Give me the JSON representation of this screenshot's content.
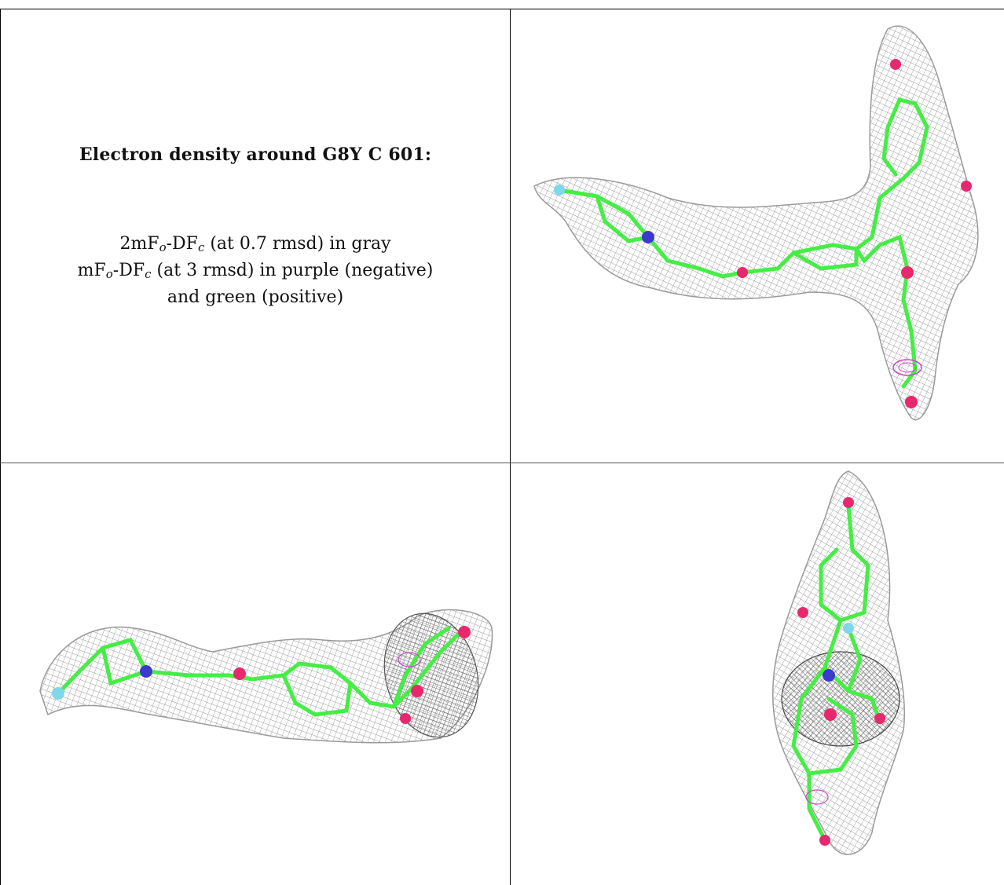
{
  "caption": {
    "title": "Electron density around G8Y C 601:",
    "line1": {
      "pre": "2mF",
      "sub1": "o",
      "mid": "-DF",
      "sub2": "c",
      "post": " (at 0.7 rmsd) in gray"
    },
    "line2": {
      "pre": "mF",
      "sub1": "o",
      "mid": "-DF",
      "sub2": "c",
      "post": " (at 3 rmsd) in purple (negative)"
    },
    "line3": "and green (positive)"
  },
  "colors": {
    "mesh_gray": "#9a9a9a",
    "negative_purple": "#cc44cc",
    "carbon_green": "#44ee44",
    "oxygen_red": "#e8286e",
    "nitrogen_blue": "#3a3acc",
    "fluorine_cyan": "#7fd8e8"
  },
  "panels": [
    {
      "name": "view-top-right",
      "content": "molecule-density-view"
    },
    {
      "name": "view-bottom-left",
      "content": "molecule-density-view"
    },
    {
      "name": "view-bottom-right",
      "content": "molecule-density-view"
    }
  ]
}
